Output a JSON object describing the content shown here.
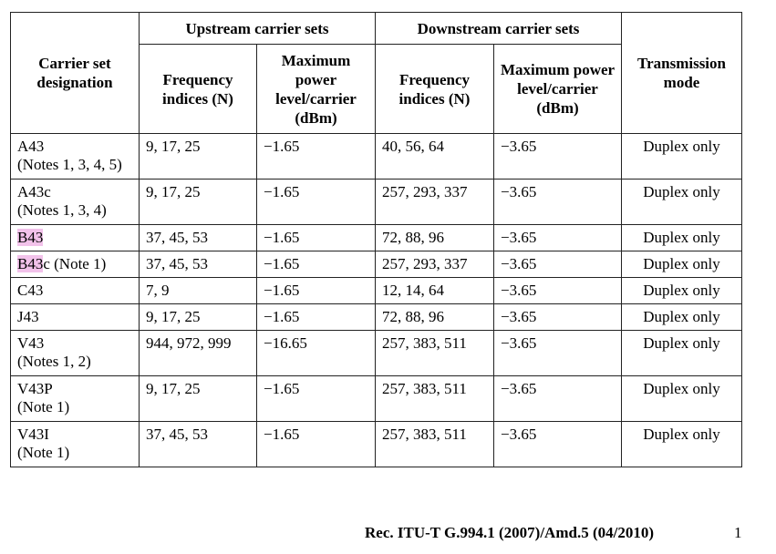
{
  "table": {
    "headers": {
      "designation": "Carrier set designation",
      "upstream_group": "Upstream carrier sets",
      "downstream_group": "Downstream carrier sets",
      "freq": "Frequency indices (N)",
      "power": "Maximum power level/carrier (dBm)",
      "mode": "Transmission mode"
    },
    "rows": [
      {
        "designation": "A43",
        "highlight": "",
        "rest": "",
        "note": "(Notes 1, 3, 4, 5)",
        "up_freq": "9, 17, 25",
        "up_power": "−1.65",
        "down_freq": "40, 56, 64",
        "down_power": "−3.65",
        "mode": "Duplex only"
      },
      {
        "designation": "A43c",
        "highlight": "",
        "rest": "",
        "note": "(Notes 1, 3, 4)",
        "up_freq": "9, 17, 25",
        "up_power": "−1.65",
        "down_freq": "257, 293, 337",
        "down_power": "−3.65",
        "mode": "Duplex only"
      },
      {
        "designation": "",
        "highlight": "B43",
        "rest": "",
        "note": "",
        "up_freq": "37, 45, 53",
        "up_power": "−1.65",
        "down_freq": "72, 88, 96",
        "down_power": "−3.65",
        "mode": "Duplex only"
      },
      {
        "designation": "",
        "highlight": "B43",
        "rest": "c (Note 1)",
        "note": "",
        "up_freq": "37, 45, 53",
        "up_power": "−1.65",
        "down_freq": "257, 293, 337",
        "down_power": "−3.65",
        "mode": "Duplex only"
      },
      {
        "designation": "C43",
        "highlight": "",
        "rest": "",
        "note": "",
        "up_freq": "7, 9",
        "up_power": "−1.65",
        "down_freq": "12, 14, 64",
        "down_power": "−3.65",
        "mode": "Duplex only"
      },
      {
        "designation": "J43",
        "highlight": "",
        "rest": "",
        "note": "",
        "up_freq": "9, 17, 25",
        "up_power": "−1.65",
        "down_freq": "72, 88, 96",
        "down_power": "−3.65",
        "mode": "Duplex only"
      },
      {
        "designation": "V43",
        "highlight": "",
        "rest": "",
        "note": "(Notes 1, 2)",
        "up_freq": "944, 972, 999",
        "up_power": "−16.65",
        "down_freq": "257, 383, 511",
        "down_power": "−3.65",
        "mode": "Duplex only"
      },
      {
        "designation": "V43P",
        "highlight": "",
        "rest": "",
        "note": "(Note 1)",
        "up_freq": "9, 17, 25",
        "up_power": "−1.65",
        "down_freq": "257, 383, 511",
        "down_power": "−3.65",
        "mode": "Duplex only"
      },
      {
        "designation": "V43I",
        "highlight": "",
        "rest": "",
        "note": "(Note 1)",
        "up_freq": "37, 45, 53",
        "up_power": "−1.65",
        "down_freq": "257, 383, 511",
        "down_power": "−3.65",
        "mode": "Duplex only"
      }
    ]
  },
  "footer": {
    "citation": "Rec. ITU-T G.994.1 (2007)/Amd.5 (04/2010)",
    "page_number": "1"
  }
}
